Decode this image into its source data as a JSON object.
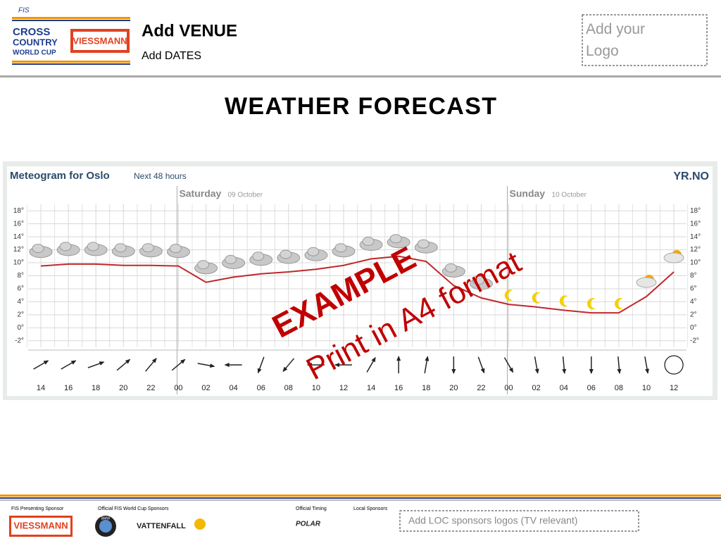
{
  "header": {
    "logo_fis": "FIS",
    "logo_lines": [
      "CROSS",
      "COUNTRY",
      "WORLD CUP"
    ],
    "logo_sponsor": "VIESSMANN",
    "venue": "Add VENUE",
    "dates": "Add DATES",
    "logo_placeholder": "Add your Logo"
  },
  "title": "WEATHER FORECAST",
  "chart_data": {
    "type": "line",
    "title": "Meteogram for Oslo",
    "subtitle": "Next 48 hours",
    "brand": "YR.NO",
    "days": [
      {
        "name": "Saturday",
        "date": "09 October",
        "at": 5
      },
      {
        "name": "Sunday",
        "date": "10 October",
        "at": 17
      }
    ],
    "categories": [
      "14",
      "16",
      "18",
      "20",
      "22",
      "00",
      "02",
      "04",
      "06",
      "08",
      "10",
      "12",
      "14",
      "16",
      "18",
      "20",
      "22",
      "00",
      "02",
      "04",
      "06",
      "08",
      "10",
      "12"
    ],
    "series": [
      {
        "name": "Temperature",
        "color": "#c0282d",
        "values": [
          9.5,
          9.8,
          9.8,
          9.6,
          9.6,
          9.5,
          7.0,
          7.8,
          8.3,
          8.6,
          9.0,
          9.6,
          10.6,
          11.0,
          10.2,
          6.5,
          4.6,
          3.6,
          3.2,
          2.7,
          2.3,
          2.3,
          4.8,
          8.6
        ]
      },
      {
        "name": "Wind direction",
        "values": [
          60,
          60,
          70,
          50,
          40,
          50,
          100,
          270,
          200,
          220,
          270,
          270,
          30,
          0,
          10,
          180,
          160,
          150,
          170,
          175,
          180,
          175,
          170,
          null
        ]
      }
    ],
    "ylim": [
      -3,
      19
    ],
    "yticks": [
      {
        "value": -2,
        "label": "-2°"
      },
      {
        "value": 0,
        "label": "0°"
      },
      {
        "value": 2,
        "label": "2°"
      },
      {
        "value": 4,
        "label": "4°"
      },
      {
        "value": 6,
        "label": "6°"
      },
      {
        "value": 8,
        "label": "8°"
      },
      {
        "value": 10,
        "label": "10°"
      },
      {
        "value": 12,
        "label": "12°"
      },
      {
        "value": 14,
        "label": "14°"
      },
      {
        "value": 16,
        "label": "16°"
      },
      {
        "value": 18,
        "label": "18°"
      }
    ],
    "grid": true
  },
  "watermark": {
    "main": "EXAMPLE",
    "sub": "Print in A4 format"
  },
  "footer": {
    "labels": [
      "FIS Presenting Sponsor",
      "Official FIS World Cup Sponsors",
      "Official Timing",
      "Local Sponsors"
    ],
    "sponsors": [
      "VIESSMANN",
      "BMW",
      "VATTENFALL",
      "POLAR"
    ],
    "loc_placeholder": "Add LOC sponsors logos (TV relevant)"
  }
}
